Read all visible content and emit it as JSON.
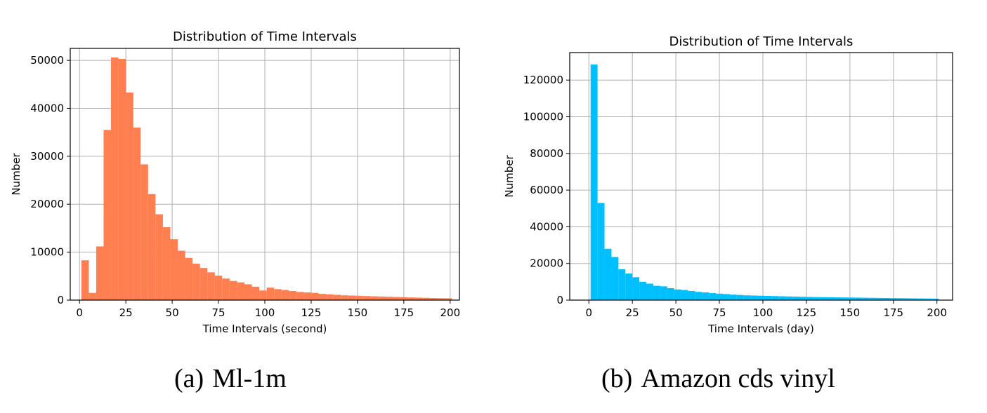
{
  "chart_data": [
    {
      "type": "bar",
      "title": "Distribution of Time Intervals",
      "xlabel": "Time Intervals (second)",
      "ylabel": "Number",
      "color": "#FF7F50",
      "xlim": [
        -5,
        205
      ],
      "ylim": [
        0,
        52500
      ],
      "grid": true,
      "xticks": [
        0,
        25,
        50,
        75,
        100,
        125,
        150,
        175,
        200
      ],
      "yticks": [
        0,
        10000,
        20000,
        30000,
        40000,
        50000
      ],
      "bin_start": 1,
      "bin_width": 4,
      "values": [
        8300,
        1500,
        11200,
        35500,
        50600,
        50300,
        43300,
        36000,
        28300,
        22100,
        17900,
        15200,
        12700,
        10300,
        8800,
        7600,
        6700,
        5800,
        5100,
        4500,
        4000,
        3700,
        3300,
        2800,
        2000,
        2600,
        2300,
        2100,
        1900,
        1700,
        1600,
        1500,
        1300,
        1200,
        1100,
        1000,
        950,
        900,
        850,
        800,
        750,
        700,
        650,
        600,
        560,
        520,
        480,
        440,
        400,
        380
      ]
    },
    {
      "type": "bar",
      "title": "Distribution of Time Intervals",
      "xlabel": "Time Intervals (day)",
      "ylabel": "Number",
      "color": "#00BFFF",
      "xlim": [
        -11,
        209
      ],
      "ylim": [
        0,
        135000
      ],
      "grid": true,
      "xticks": [
        0,
        25,
        50,
        75,
        100,
        125,
        150,
        175,
        200
      ],
      "yticks": [
        0,
        20000,
        40000,
        60000,
        80000,
        100000,
        120000
      ],
      "bin_start": 1,
      "bin_width": 4,
      "values": [
        128500,
        53000,
        28000,
        23500,
        16800,
        14500,
        12500,
        10000,
        9000,
        7800,
        7500,
        6500,
        5800,
        5500,
        5000,
        4500,
        4200,
        3800,
        3500,
        3300,
        3000,
        2800,
        2600,
        2500,
        2400,
        2300,
        2200,
        2100,
        2000,
        1900,
        1800,
        1700,
        1650,
        1600,
        1550,
        1500,
        1450,
        1400,
        1350,
        1300,
        1250,
        1200,
        1150,
        1100,
        1050,
        1000,
        950,
        900,
        850,
        800
      ]
    }
  ],
  "captions": [
    {
      "label": "(a)",
      "text": "Ml-1m"
    },
    {
      "label": "(b)",
      "text": "Amazon cds vinyl"
    }
  ]
}
